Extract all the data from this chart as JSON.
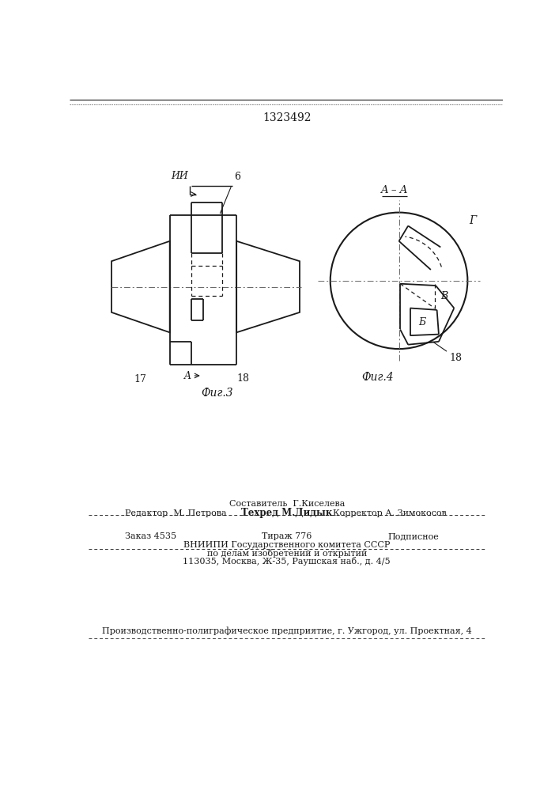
{
  "patent_number": "1323492",
  "bg_color": "#ffffff",
  "line_color": "#1a1a1a",
  "fig3_label": "Фиг.3",
  "fig4_label": "Фиг.4",
  "label_6": "6",
  "label_17": "17",
  "label_18": "18",
  "label_II": "ИИ",
  "label_A_top": "A",
  "label_A_bot": "A",
  "label_A_A": "A – A",
  "label_G": "Г",
  "label_B": "B",
  "label_b": "Б",
  "editor_line": "Редактор  М. Петрова",
  "composer_line1": "Составитель  Г.Киселева",
  "techred_line": "Техред М.Дидык",
  "corrector_line": "Корректор А. Зимокосов",
  "order_line": "Заказ 4535",
  "tirazh_line": "Тираж 776",
  "podpisnoe_line": "Подписное",
  "vniip_line1": "ВНИИПИ Государственного комитета СССР",
  "vniip_line2": "по делам изобретений и открытий",
  "vniip_line3": "113035, Москва, Ж-35, Раушская наб., д. 4/5",
  "production_line": "Производственно-полиграфическое предприятие, г. Ужгород, ул. Проектная, 4"
}
